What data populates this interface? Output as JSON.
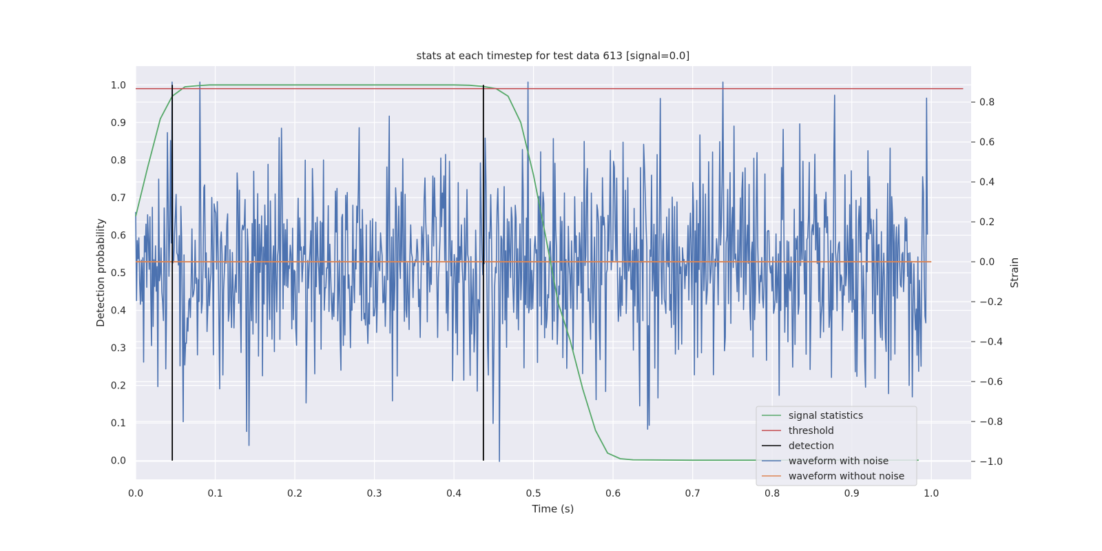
{
  "chart_data": {
    "type": "line",
    "title": "stats at each timestep for test data 613 [signal=0.0]",
    "xlabel": "Time (s)",
    "ylabel_left": "Detection probability",
    "ylabel_right": "Strain",
    "xlim": [
      0.0,
      1.05
    ],
    "ylim_left": [
      -0.05,
      1.05
    ],
    "ylim_right": [
      -1.09,
      0.98
    ],
    "x_ticks": [
      "0.0",
      "0.1",
      "0.2",
      "0.3",
      "0.4",
      "0.5",
      "0.6",
      "0.7",
      "0.8",
      "0.9",
      "1.0"
    ],
    "y_left_ticks": [
      "0.0",
      "0.1",
      "0.2",
      "0.3",
      "0.4",
      "0.5",
      "0.6",
      "0.7",
      "0.8",
      "0.9",
      "1.0"
    ],
    "y_right_ticks": [
      "−1.0",
      "−0.8",
      "−0.6",
      "−0.4",
      "−0.2",
      "0.0",
      "0.2",
      "0.4",
      "0.6",
      "0.8"
    ],
    "grid": true,
    "legend_position": "lower-right",
    "legend": [
      {
        "label": "signal statistics",
        "color": "#55a868"
      },
      {
        "label": "threshold",
        "color": "#c44e52"
      },
      {
        "label": "detection",
        "color": "#000000"
      },
      {
        "label": "waveform with noise",
        "color": "#4c72b0"
      },
      {
        "label": "waveform without noise",
        "color": "#dd8452"
      }
    ],
    "signal_statistics": {
      "axis": "left",
      "x": [
        0.0,
        0.015,
        0.031,
        0.046,
        0.062,
        0.078,
        0.093,
        0.109,
        0.125,
        0.2,
        0.3,
        0.4,
        0.42,
        0.437,
        0.453,
        0.468,
        0.484,
        0.5,
        0.515,
        0.531,
        0.546,
        0.562,
        0.578,
        0.593,
        0.609,
        0.625,
        0.7,
        0.8,
        0.9,
        0.984
      ],
      "y": [
        0.65,
        0.78,
        0.91,
        0.97,
        0.995,
        0.998,
        1.0,
        1.0,
        1.0,
        1.0,
        1.0,
        1.0,
        0.999,
        0.996,
        0.99,
        0.97,
        0.9,
        0.76,
        0.6,
        0.42,
        0.32,
        0.19,
        0.08,
        0.02,
        0.005,
        0.002,
        0.001,
        0.001,
        0.001,
        0.001
      ]
    },
    "threshold": {
      "axis": "left",
      "y": 0.99,
      "x_range": [
        0.0,
        1.04
      ]
    },
    "detections": {
      "axis": "left",
      "x": [
        0.046,
        0.437
      ],
      "y_range": [
        0.0,
        1.0
      ]
    },
    "waveform_without_noise": {
      "axis": "right",
      "y": 0.0,
      "x_range": [
        0.0,
        1.0
      ]
    },
    "waveform_with_noise": {
      "axis": "right",
      "x_range": [
        0.0,
        0.995
      ],
      "n_points": 1000,
      "seed": 613,
      "std": 0.28,
      "y_min": -1.0,
      "y_max": 0.9,
      "peaks": [
        {
          "x": 0.046,
          "y": 0.9
        },
        {
          "x": 0.081,
          "y": 0.9
        },
        {
          "x": 0.738,
          "y": 0.9
        },
        {
          "x": 0.457,
          "y": -1.0
        },
        {
          "x": 0.142,
          "y": -0.92
        },
        {
          "x": 0.139,
          "y": -0.85
        },
        {
          "x": 0.537,
          "y": -0.48
        },
        {
          "x": 0.319,
          "y": 0.73
        },
        {
          "x": 0.994,
          "y": 0.82
        }
      ]
    }
  }
}
